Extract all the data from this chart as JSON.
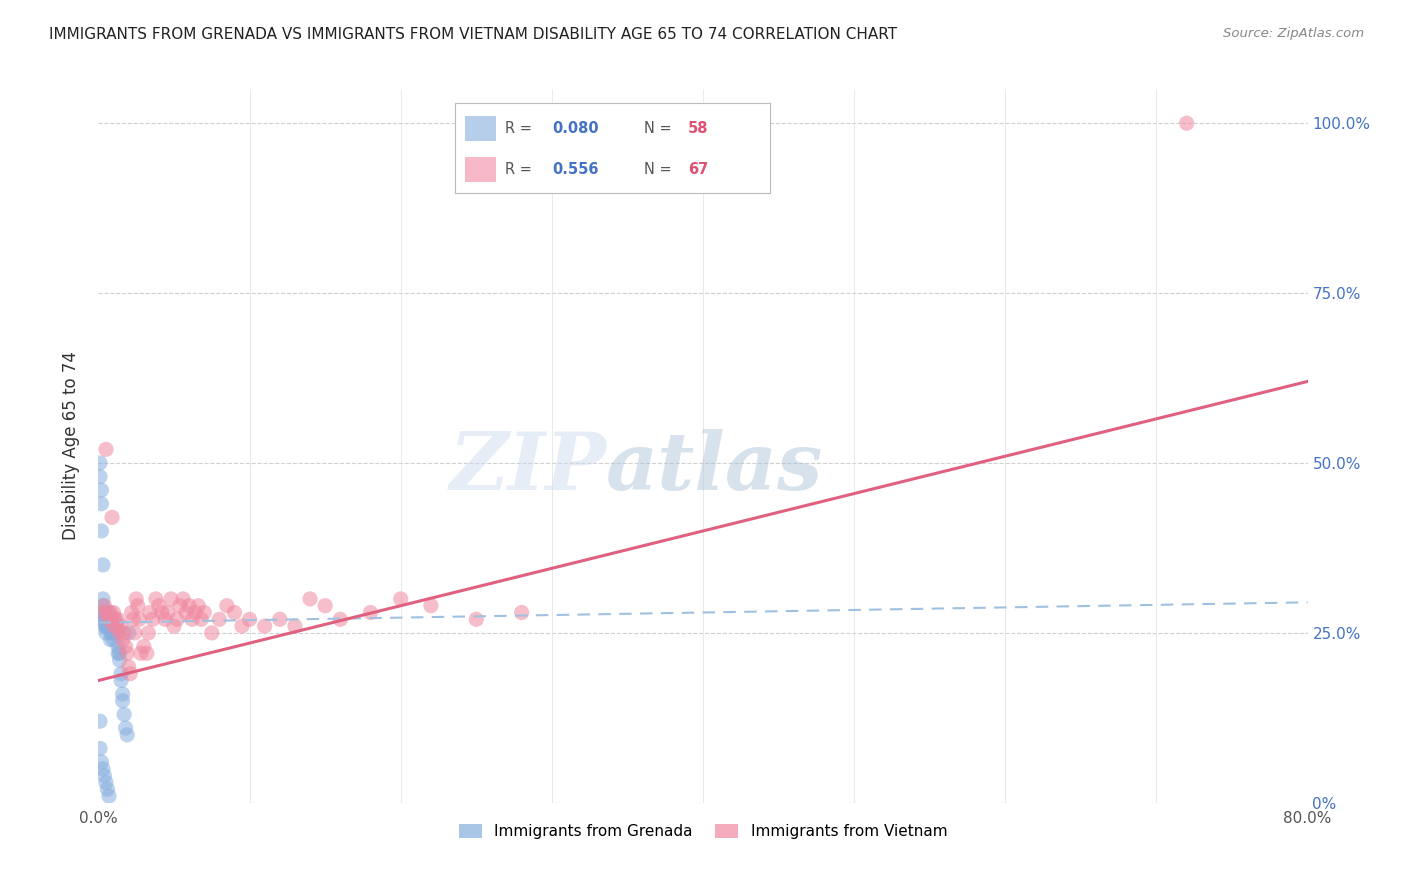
{
  "title": "IMMIGRANTS FROM GRENADA VS IMMIGRANTS FROM VIETNAM DISABILITY AGE 65 TO 74 CORRELATION CHART",
  "source": "Source: ZipAtlas.com",
  "ylabel": "Disability Age 65 to 74",
  "xlim": [
    0.0,
    0.8
  ],
  "ylim": [
    0.0,
    1.05
  ],
  "ytick_positions": [
    0.0,
    0.25,
    0.5,
    0.75,
    1.0
  ],
  "ytick_labels": [
    "0%",
    "25.0%",
    "50.0%",
    "75.0%",
    "100.0%"
  ],
  "grenada_color": "#87AEDE",
  "vietnam_color": "#F088A0",
  "grenada_R": 0.08,
  "grenada_N": 58,
  "vietnam_R": 0.556,
  "vietnam_N": 67,
  "legend_grenada": "Immigrants from Grenada",
  "legend_vietnam": "Immigrants from Vietnam",
  "grenada_line_x": [
    0.0,
    0.8
  ],
  "grenada_line_y": [
    0.265,
    0.295
  ],
  "vietnam_line_x": [
    0.0,
    0.8
  ],
  "vietnam_line_y": [
    0.18,
    0.62
  ],
  "grenada_scatter_x": [
    0.001,
    0.001,
    0.002,
    0.002,
    0.002,
    0.003,
    0.003,
    0.003,
    0.003,
    0.004,
    0.004,
    0.004,
    0.004,
    0.005,
    0.005,
    0.005,
    0.005,
    0.006,
    0.006,
    0.006,
    0.007,
    0.007,
    0.007,
    0.007,
    0.008,
    0.008,
    0.008,
    0.008,
    0.009,
    0.009,
    0.01,
    0.01,
    0.01,
    0.011,
    0.011,
    0.012,
    0.012,
    0.012,
    0.013,
    0.013,
    0.014,
    0.014,
    0.015,
    0.015,
    0.016,
    0.016,
    0.017,
    0.018,
    0.019,
    0.02,
    0.001,
    0.001,
    0.002,
    0.003,
    0.004,
    0.005,
    0.006,
    0.007
  ],
  "grenada_scatter_y": [
    0.48,
    0.5,
    0.44,
    0.46,
    0.4,
    0.35,
    0.29,
    0.3,
    0.28,
    0.27,
    0.28,
    0.26,
    0.27,
    0.26,
    0.26,
    0.27,
    0.25,
    0.27,
    0.26,
    0.27,
    0.26,
    0.26,
    0.27,
    0.28,
    0.25,
    0.27,
    0.24,
    0.26,
    0.27,
    0.25,
    0.25,
    0.26,
    0.24,
    0.26,
    0.27,
    0.25,
    0.25,
    0.26,
    0.23,
    0.22,
    0.22,
    0.21,
    0.19,
    0.18,
    0.16,
    0.15,
    0.13,
    0.11,
    0.1,
    0.25,
    0.12,
    0.08,
    0.06,
    0.05,
    0.04,
    0.03,
    0.02,
    0.01
  ],
  "vietnam_scatter_x": [
    0.003,
    0.004,
    0.005,
    0.006,
    0.007,
    0.008,
    0.009,
    0.01,
    0.01,
    0.011,
    0.012,
    0.013,
    0.014,
    0.015,
    0.016,
    0.017,
    0.018,
    0.019,
    0.02,
    0.021,
    0.022,
    0.023,
    0.024,
    0.025,
    0.026,
    0.027,
    0.028,
    0.03,
    0.032,
    0.033,
    0.034,
    0.036,
    0.038,
    0.04,
    0.042,
    0.044,
    0.046,
    0.048,
    0.05,
    0.052,
    0.054,
    0.056,
    0.058,
    0.06,
    0.062,
    0.064,
    0.066,
    0.068,
    0.07,
    0.075,
    0.08,
    0.085,
    0.09,
    0.095,
    0.1,
    0.11,
    0.12,
    0.13,
    0.14,
    0.15,
    0.16,
    0.18,
    0.2,
    0.22,
    0.25,
    0.28,
    0.72
  ],
  "vietnam_scatter_y": [
    0.28,
    0.29,
    0.52,
    0.28,
    0.27,
    0.28,
    0.42,
    0.28,
    0.26,
    0.27,
    0.26,
    0.27,
    0.25,
    0.26,
    0.24,
    0.25,
    0.23,
    0.22,
    0.2,
    0.19,
    0.28,
    0.27,
    0.25,
    0.3,
    0.29,
    0.27,
    0.22,
    0.23,
    0.22,
    0.25,
    0.28,
    0.27,
    0.3,
    0.29,
    0.28,
    0.27,
    0.28,
    0.3,
    0.26,
    0.27,
    0.29,
    0.3,
    0.28,
    0.29,
    0.27,
    0.28,
    0.29,
    0.27,
    0.28,
    0.25,
    0.27,
    0.29,
    0.28,
    0.26,
    0.27,
    0.26,
    0.27,
    0.26,
    0.3,
    0.29,
    0.27,
    0.28,
    0.3,
    0.29,
    0.27,
    0.28,
    1.0
  ]
}
